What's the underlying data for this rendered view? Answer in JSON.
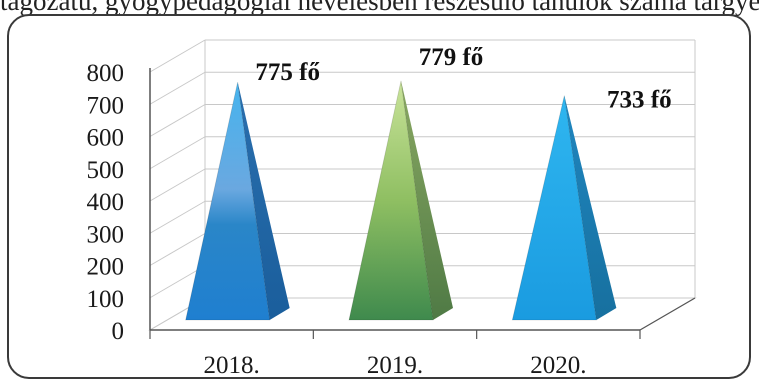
{
  "chart_data": {
    "type": "bar",
    "shape": "pyramid",
    "title": "",
    "top_text": "tagozatú, gyógypedagógiai nevelésben részesülő tanulók száma tárgyévben",
    "categories": [
      "2018.",
      "2019.",
      "2020."
    ],
    "values": [
      775,
      779,
      733
    ],
    "data_labels": [
      "775 fő",
      "779 fő",
      "733 fő"
    ],
    "yticks": [
      "0",
      "100",
      "200",
      "300",
      "400",
      "500",
      "600",
      "700",
      "800"
    ],
    "ylim": [
      0,
      800
    ],
    "xlabel": "",
    "ylabel": "",
    "grid": true,
    "legend": "none",
    "colors": {
      "bar_2018": "#2f8fd8",
      "bar_2019": "#7fb257",
      "bar_2020": "#1fa6e6",
      "grid": "#c8c8c8",
      "axis": "#555555"
    }
  }
}
